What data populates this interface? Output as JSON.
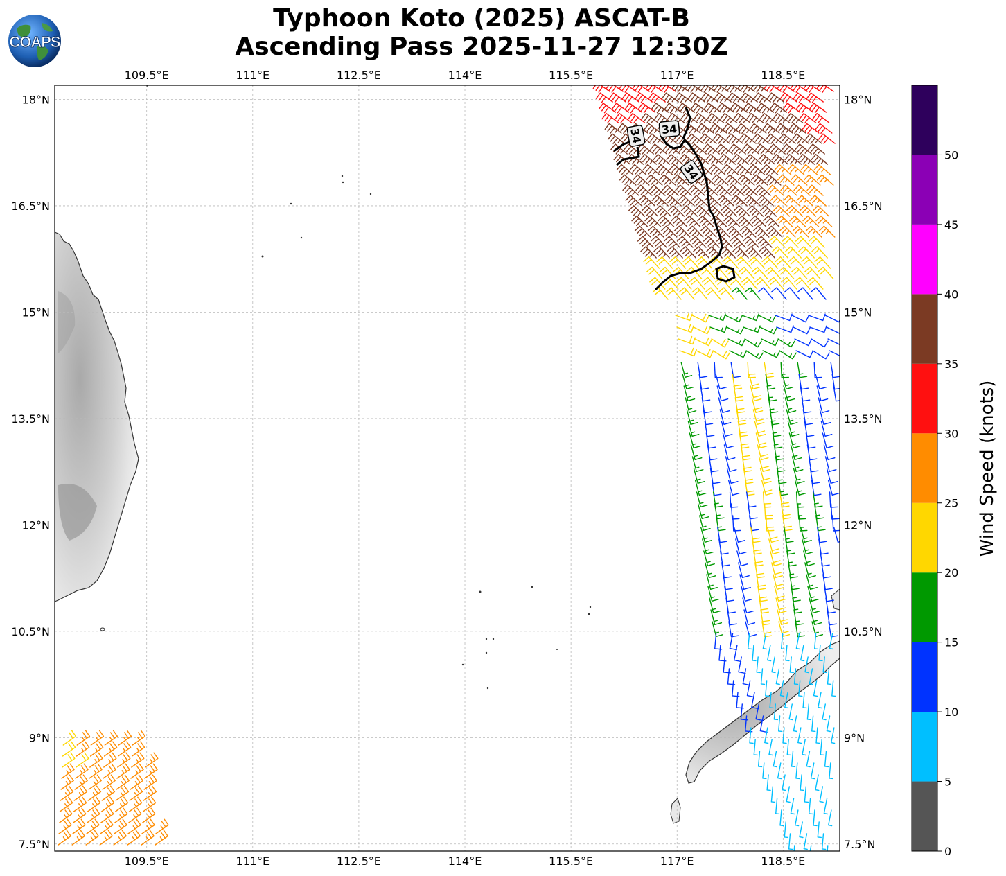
{
  "title": {
    "line1": "Typhoon Koto (2025) ASCAT-B",
    "line2": "Ascending Pass 2025-11-27 12:30Z"
  },
  "logo": {
    "text": "COAPS",
    "icon": "globe-icon"
  },
  "map": {
    "lon_ticks": [
      "109.5°E",
      "111°E",
      "112.5°E",
      "114°E",
      "115.5°E",
      "117°E",
      "118.5°E"
    ],
    "lat_ticks_left": [
      "18°N",
      "16.5°N",
      "15°N",
      "13.5°N",
      "12°N",
      "10.5°N",
      "9°N",
      "7.5°N"
    ],
    "lat_ticks_right": [
      "18°N",
      "16.5°N",
      "15°N",
      "13.5°N",
      "12°N",
      "10.5°N",
      "9°N",
      "7.5°N"
    ],
    "lon_range": [
      108.2,
      119.3
    ],
    "lat_range": [
      7.4,
      18.2
    ],
    "contour_label": "34",
    "contour_label_count": 3,
    "gridlines": true
  },
  "colorbar": {
    "label": "Wind Speed (knots)",
    "ticks": [
      "0",
      "5",
      "10",
      "15",
      "20",
      "25",
      "30",
      "35",
      "40",
      "45",
      "50"
    ],
    "colors": [
      "#555555",
      "#00bfff",
      "#0033ff",
      "#009900",
      "#ffd700",
      "#ff8c00",
      "#ff1010",
      "#7b3a23",
      "#ff00ff",
      "#8b00b5",
      "#2e005c"
    ]
  }
}
